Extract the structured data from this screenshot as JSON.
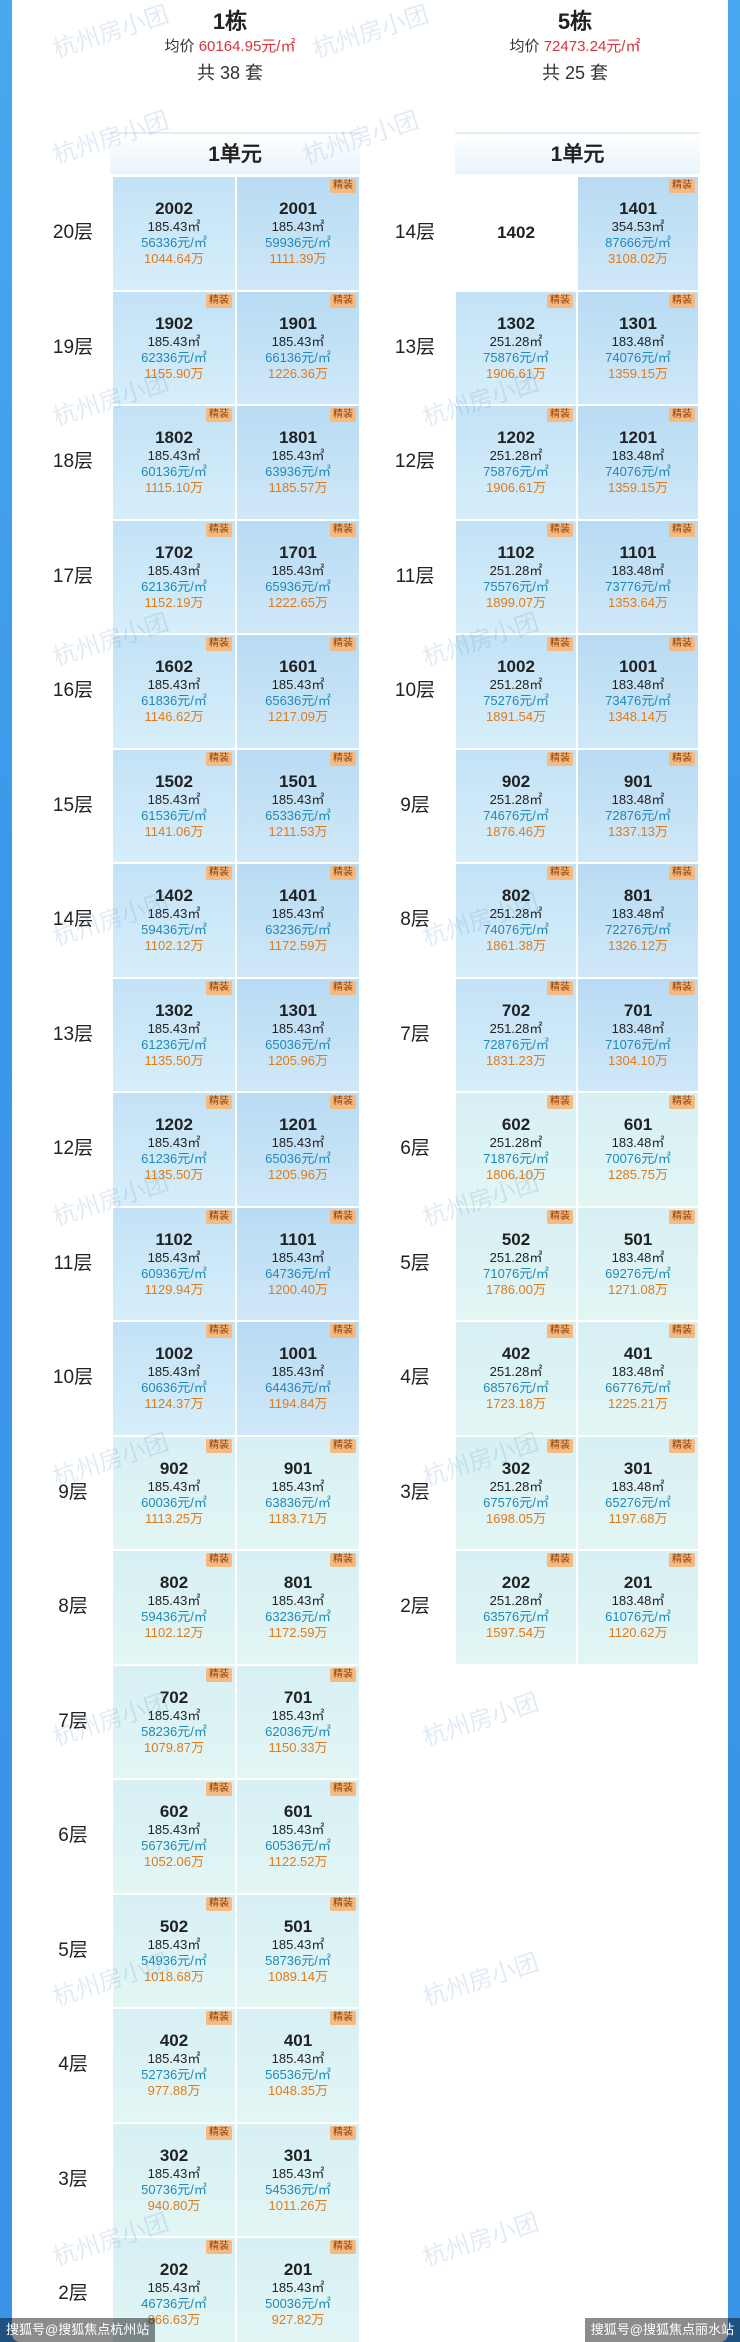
{
  "building1": {
    "name": "1栋",
    "avg_label": "均价",
    "avg_price": "60164.95元/㎡",
    "count": "共 38 套",
    "unit_label": "1单元",
    "floors": [
      {
        "floor": "20层",
        "rooms": [
          {
            "room": "2002",
            "area": "185.43㎡",
            "unit": "56336元/㎡",
            "total": "1044.64万"
          },
          {
            "room": "2001",
            "area": "185.43㎡",
            "unit": "59936元/㎡",
            "total": "1111.39万",
            "badge": "精装"
          }
        ]
      },
      {
        "floor": "19层",
        "rooms": [
          {
            "room": "1902",
            "area": "185.43㎡",
            "unit": "62336元/㎡",
            "total": "1155.90万",
            "badge": "精装"
          },
          {
            "room": "1901",
            "area": "185.43㎡",
            "unit": "66136元/㎡",
            "total": "1226.36万",
            "badge": "精装"
          }
        ]
      },
      {
        "floor": "18层",
        "rooms": [
          {
            "room": "1802",
            "area": "185.43㎡",
            "unit": "60136元/㎡",
            "total": "1115.10万",
            "badge": "精装"
          },
          {
            "room": "1801",
            "area": "185.43㎡",
            "unit": "63936元/㎡",
            "total": "1185.57万",
            "badge": "精装"
          }
        ]
      },
      {
        "floor": "17层",
        "rooms": [
          {
            "room": "1702",
            "area": "185.43㎡",
            "unit": "62136元/㎡",
            "total": "1152.19万",
            "badge": "精装"
          },
          {
            "room": "1701",
            "area": "185.43㎡",
            "unit": "65936元/㎡",
            "total": "1222.65万",
            "badge": "精装"
          }
        ]
      },
      {
        "floor": "16层",
        "rooms": [
          {
            "room": "1602",
            "area": "185.43㎡",
            "unit": "61836元/㎡",
            "total": "1146.62万",
            "badge": "精装"
          },
          {
            "room": "1601",
            "area": "185.43㎡",
            "unit": "65636元/㎡",
            "total": "1217.09万",
            "badge": "精装"
          }
        ]
      },
      {
        "floor": "15层",
        "rooms": [
          {
            "room": "1502",
            "area": "185.43㎡",
            "unit": "61536元/㎡",
            "total": "1141.06万",
            "badge": "精装"
          },
          {
            "room": "1501",
            "area": "185.43㎡",
            "unit": "65336元/㎡",
            "total": "1211.53万",
            "badge": "精装"
          }
        ]
      },
      {
        "floor": "14层",
        "rooms": [
          {
            "room": "1402",
            "area": "185.43㎡",
            "unit": "59436元/㎡",
            "total": "1102.12万",
            "badge": "精装"
          },
          {
            "room": "1401",
            "area": "185.43㎡",
            "unit": "63236元/㎡",
            "total": "1172.59万",
            "badge": "精装"
          }
        ]
      },
      {
        "floor": "13层",
        "rooms": [
          {
            "room": "1302",
            "area": "185.43㎡",
            "unit": "61236元/㎡",
            "total": "1135.50万",
            "badge": "精装"
          },
          {
            "room": "1301",
            "area": "185.43㎡",
            "unit": "65036元/㎡",
            "total": "1205.96万",
            "badge": "精装"
          }
        ]
      },
      {
        "floor": "12层",
        "rooms": [
          {
            "room": "1202",
            "area": "185.43㎡",
            "unit": "61236元/㎡",
            "total": "1135.50万",
            "badge": "精装"
          },
          {
            "room": "1201",
            "area": "185.43㎡",
            "unit": "65036元/㎡",
            "total": "1205.96万",
            "badge": "精装"
          }
        ]
      },
      {
        "floor": "11层",
        "rooms": [
          {
            "room": "1102",
            "area": "185.43㎡",
            "unit": "60936元/㎡",
            "total": "1129.94万",
            "badge": "精装"
          },
          {
            "room": "1101",
            "area": "185.43㎡",
            "unit": "64736元/㎡",
            "total": "1200.40万",
            "badge": "精装"
          }
        ]
      },
      {
        "floor": "10层",
        "rooms": [
          {
            "room": "1002",
            "area": "185.43㎡",
            "unit": "60636元/㎡",
            "total": "1124.37万",
            "badge": "精装"
          },
          {
            "room": "1001",
            "area": "185.43㎡",
            "unit": "64436元/㎡",
            "total": "1194.84万",
            "badge": "精装"
          }
        ]
      },
      {
        "floor": "9层",
        "rooms": [
          {
            "room": "902",
            "area": "185.43㎡",
            "unit": "60036元/㎡",
            "total": "1113.25万",
            "badge": "精装"
          },
          {
            "room": "901",
            "area": "185.43㎡",
            "unit": "63836元/㎡",
            "total": "1183.71万",
            "badge": "精装"
          }
        ]
      },
      {
        "floor": "8层",
        "rooms": [
          {
            "room": "802",
            "area": "185.43㎡",
            "unit": "59436元/㎡",
            "total": "1102.12万",
            "badge": "精装"
          },
          {
            "room": "801",
            "area": "185.43㎡",
            "unit": "63236元/㎡",
            "total": "1172.59万",
            "badge": "精装"
          }
        ]
      },
      {
        "floor": "7层",
        "rooms": [
          {
            "room": "702",
            "area": "185.43㎡",
            "unit": "58236元/㎡",
            "total": "1079.87万",
            "badge": "精装"
          },
          {
            "room": "701",
            "area": "185.43㎡",
            "unit": "62036元/㎡",
            "total": "1150.33万",
            "badge": "精装"
          }
        ]
      },
      {
        "floor": "6层",
        "rooms": [
          {
            "room": "602",
            "area": "185.43㎡",
            "unit": "56736元/㎡",
            "total": "1052.06万",
            "badge": "精装"
          },
          {
            "room": "601",
            "area": "185.43㎡",
            "unit": "60536元/㎡",
            "total": "1122.52万",
            "badge": "精装"
          }
        ]
      },
      {
        "floor": "5层",
        "rooms": [
          {
            "room": "502",
            "area": "185.43㎡",
            "unit": "54936元/㎡",
            "total": "1018.68万",
            "badge": "精装"
          },
          {
            "room": "501",
            "area": "185.43㎡",
            "unit": "58736元/㎡",
            "total": "1089.14万",
            "badge": "精装"
          }
        ]
      },
      {
        "floor": "4层",
        "rooms": [
          {
            "room": "402",
            "area": "185.43㎡",
            "unit": "52736元/㎡",
            "total": "977.88万",
            "badge": "精装"
          },
          {
            "room": "401",
            "area": "185.43㎡",
            "unit": "56536元/㎡",
            "total": "1048.35万",
            "badge": "精装"
          }
        ]
      },
      {
        "floor": "3层",
        "rooms": [
          {
            "room": "302",
            "area": "185.43㎡",
            "unit": "50736元/㎡",
            "total": "940.80万",
            "badge": "精装"
          },
          {
            "room": "301",
            "area": "185.43㎡",
            "unit": "54536元/㎡",
            "total": "1011.26万",
            "badge": "精装"
          }
        ]
      },
      {
        "floor": "2层",
        "rooms": [
          {
            "room": "202",
            "area": "185.43㎡",
            "unit": "46736元/㎡",
            "total": "866.63万",
            "badge": "精装"
          },
          {
            "room": "201",
            "area": "185.43㎡",
            "unit": "50036元/㎡",
            "total": "927.82万",
            "badge": "精装"
          }
        ]
      }
    ]
  },
  "building5": {
    "name": "5栋",
    "avg_label": "均价",
    "avg_price": "72473.24元/㎡",
    "count": "共 25 套",
    "unit_label": "1单元",
    "floors": [
      {
        "floor": "14层",
        "rooms": [
          {
            "room": "1402",
            "empty": true
          },
          {
            "room": "1401",
            "area": "354.53㎡",
            "unit": "87666元/㎡",
            "total": "3108.02万",
            "badge": "精装"
          }
        ]
      },
      {
        "floor": "13层",
        "rooms": [
          {
            "room": "1302",
            "area": "251.28㎡",
            "unit": "75876元/㎡",
            "total": "1906.61万",
            "badge": "精装"
          },
          {
            "room": "1301",
            "area": "183.48㎡",
            "unit": "74076元/㎡",
            "total": "1359.15万",
            "badge": "精装"
          }
        ]
      },
      {
        "floor": "12层",
        "rooms": [
          {
            "room": "1202",
            "area": "251.28㎡",
            "unit": "75876元/㎡",
            "total": "1906.61万",
            "badge": "精装"
          },
          {
            "room": "1201",
            "area": "183.48㎡",
            "unit": "74076元/㎡",
            "total": "1359.15万",
            "badge": "精装"
          }
        ]
      },
      {
        "floor": "11层",
        "rooms": [
          {
            "room": "1102",
            "area": "251.28㎡",
            "unit": "75576元/㎡",
            "total": "1899.07万",
            "badge": "精装"
          },
          {
            "room": "1101",
            "area": "183.48㎡",
            "unit": "73776元/㎡",
            "total": "1353.64万",
            "badge": "精装"
          }
        ]
      },
      {
        "floor": "10层",
        "rooms": [
          {
            "room": "1002",
            "area": "251.28㎡",
            "unit": "75276元/㎡",
            "total": "1891.54万",
            "badge": "精装"
          },
          {
            "room": "1001",
            "area": "183.48㎡",
            "unit": "73476元/㎡",
            "total": "1348.14万",
            "badge": "精装"
          }
        ]
      },
      {
        "floor": "9层",
        "rooms": [
          {
            "room": "902",
            "area": "251.28㎡",
            "unit": "74676元/㎡",
            "total": "1876.46万",
            "badge": "精装"
          },
          {
            "room": "901",
            "area": "183.48㎡",
            "unit": "72876元/㎡",
            "total": "1337.13万",
            "badge": "精装"
          }
        ]
      },
      {
        "floor": "8层",
        "rooms": [
          {
            "room": "802",
            "area": "251.28㎡",
            "unit": "74076元/㎡",
            "total": "1861.38万",
            "badge": "精装"
          },
          {
            "room": "801",
            "area": "183.48㎡",
            "unit": "72276元/㎡",
            "total": "1326.12万",
            "badge": "精装"
          }
        ]
      },
      {
        "floor": "7层",
        "rooms": [
          {
            "room": "702",
            "area": "251.28㎡",
            "unit": "72876元/㎡",
            "total": "1831.23万",
            "badge": "精装"
          },
          {
            "room": "701",
            "area": "183.48㎡",
            "unit": "71076元/㎡",
            "total": "1304.10万",
            "badge": "精装"
          }
        ]
      },
      {
        "floor": "6层",
        "rooms": [
          {
            "room": "602",
            "area": "251.28㎡",
            "unit": "71876元/㎡",
            "total": "1806.10万",
            "badge": "精装"
          },
          {
            "room": "601",
            "area": "183.48㎡",
            "unit": "70076元/㎡",
            "total": "1285.75万",
            "badge": "精装"
          }
        ]
      },
      {
        "floor": "5层",
        "rooms": [
          {
            "room": "502",
            "area": "251.28㎡",
            "unit": "71076元/㎡",
            "total": "1786.00万",
            "badge": "精装"
          },
          {
            "room": "501",
            "area": "183.48㎡",
            "unit": "69276元/㎡",
            "total": "1271.08万",
            "badge": "精装"
          }
        ]
      },
      {
        "floor": "4层",
        "rooms": [
          {
            "room": "402",
            "area": "251.28㎡",
            "unit": "68576元/㎡",
            "total": "1723.18万",
            "badge": "精装"
          },
          {
            "room": "401",
            "area": "183.48㎡",
            "unit": "66776元/㎡",
            "total": "1225.21万",
            "badge": "精装"
          }
        ]
      },
      {
        "floor": "3层",
        "rooms": [
          {
            "room": "302",
            "area": "251.28㎡",
            "unit": "67576元/㎡",
            "total": "1698.05万",
            "badge": "精装"
          },
          {
            "room": "301",
            "area": "183.48㎡",
            "unit": "65276元/㎡",
            "total": "1197.68万",
            "badge": "精装"
          }
        ]
      },
      {
        "floor": "2层",
        "rooms": [
          {
            "room": "202",
            "area": "251.28㎡",
            "unit": "63576元/㎡",
            "total": "1597.54万",
            "badge": "精装"
          },
          {
            "room": "201",
            "area": "183.48㎡",
            "unit": "61076元/㎡",
            "total": "1120.62万",
            "badge": "精装"
          }
        ]
      }
    ]
  },
  "watermark_text": "杭州房小团",
  "footer": {
    "left": "搜狐号@搜狐焦点杭州站",
    "right": "搜狐号@搜狐焦点丽水站"
  },
  "colors": {
    "avg_price": "#d9333f",
    "unit_price": "#1f8ab8",
    "total_price": "#e07b1a",
    "badge_bg": "#f6b980"
  }
}
